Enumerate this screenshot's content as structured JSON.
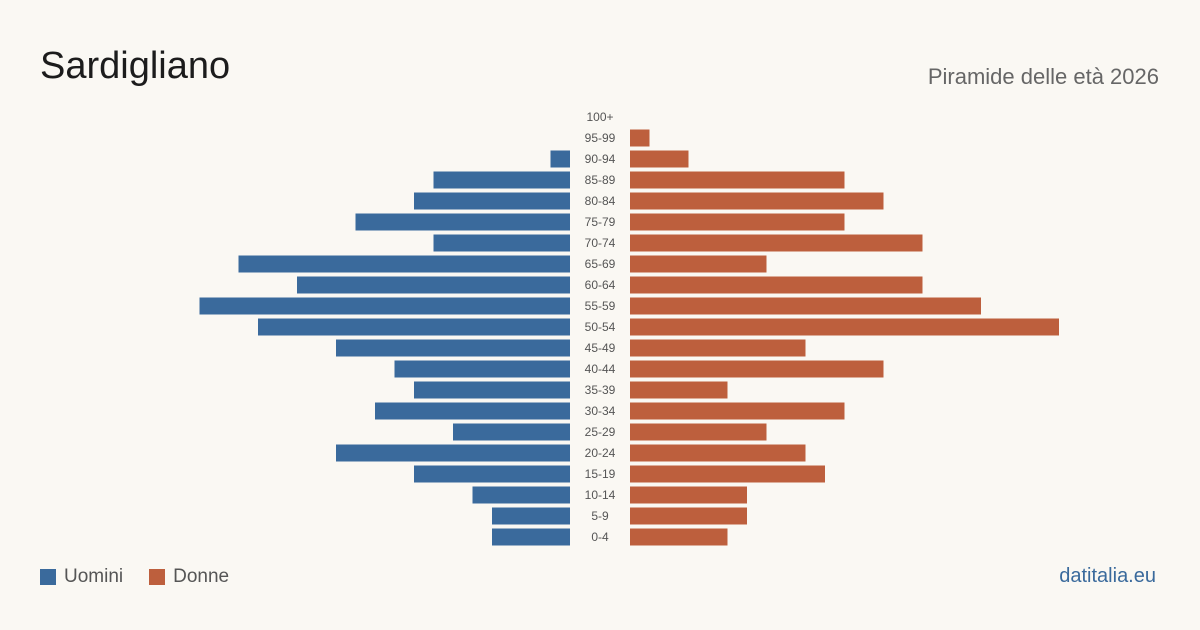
{
  "header": {
    "title": "Sardigliano",
    "subtitle": "Piramide delle età 2026"
  },
  "legend": {
    "male_label": "Uomini",
    "female_label": "Donne"
  },
  "source": "datitalia.eu",
  "colors": {
    "male": "#3a6a9c",
    "female": "#bd5f3d",
    "background": "#faf8f3",
    "source_link": "#3a6a9c"
  },
  "chart_data": {
    "type": "bar",
    "orientation": "horizontal-pyramid",
    "categories": [
      "100+",
      "95-99",
      "90-94",
      "85-89",
      "80-84",
      "75-79",
      "70-74",
      "65-69",
      "60-64",
      "55-59",
      "50-54",
      "45-49",
      "40-44",
      "35-39",
      "30-34",
      "25-29",
      "20-24",
      "15-19",
      "10-14",
      "5-9",
      "0-4"
    ],
    "series": [
      {
        "name": "Uomini",
        "values": [
          0,
          0,
          1,
          7,
          8,
          11,
          7,
          17,
          14,
          19,
          16,
          12,
          9,
          8,
          10,
          6,
          12,
          8,
          5,
          4,
          4
        ]
      },
      {
        "name": "Donne",
        "values": [
          0,
          1,
          3,
          11,
          13,
          11,
          15,
          7,
          15,
          18,
          22,
          9,
          13,
          5,
          11,
          7,
          9,
          10,
          6,
          6,
          5
        ]
      }
    ],
    "legend_position": "bottom-left",
    "grid": false
  }
}
